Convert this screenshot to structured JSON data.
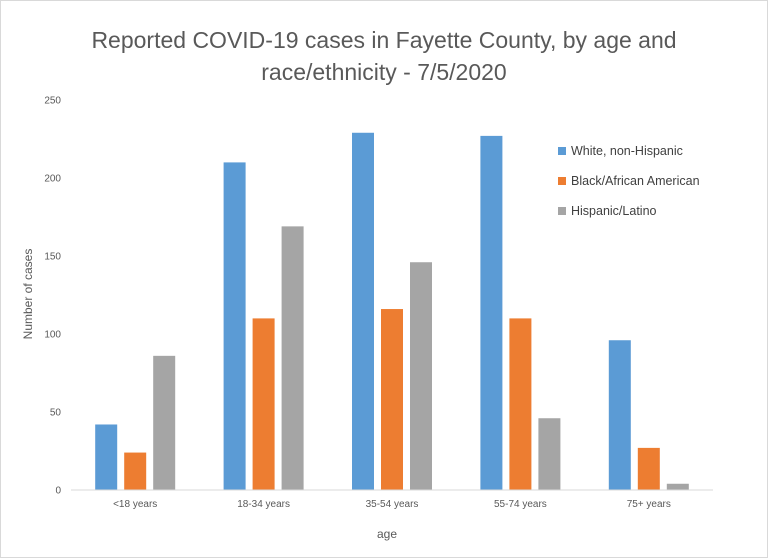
{
  "chart_data": {
    "type": "bar",
    "title_lines": [
      "Reported COVID-19 cases in Fayette County, by age and",
      "race/ethnicity - 7/5/2020"
    ],
    "xlabel": "age",
    "ylabel": "Number of cases",
    "categories": [
      "<18 years",
      "18-34 years",
      "35-54 years",
      "55-74 years",
      "75+ years"
    ],
    "ylim": [
      0,
      250
    ],
    "yticks": [
      0,
      50,
      100,
      150,
      200,
      250
    ],
    "grid": false,
    "legend_position": "right",
    "series": [
      {
        "name": "White, non-Hispanic",
        "color": "#5b9bd5",
        "values": [
          42,
          210,
          229,
          227,
          96
        ]
      },
      {
        "name": "Black/African American",
        "color": "#ed7d31",
        "values": [
          24,
          110,
          116,
          110,
          27
        ]
      },
      {
        "name": "Hispanic/Latino",
        "color": "#a5a5a5",
        "values": [
          86,
          169,
          146,
          46,
          4
        ]
      }
    ]
  }
}
